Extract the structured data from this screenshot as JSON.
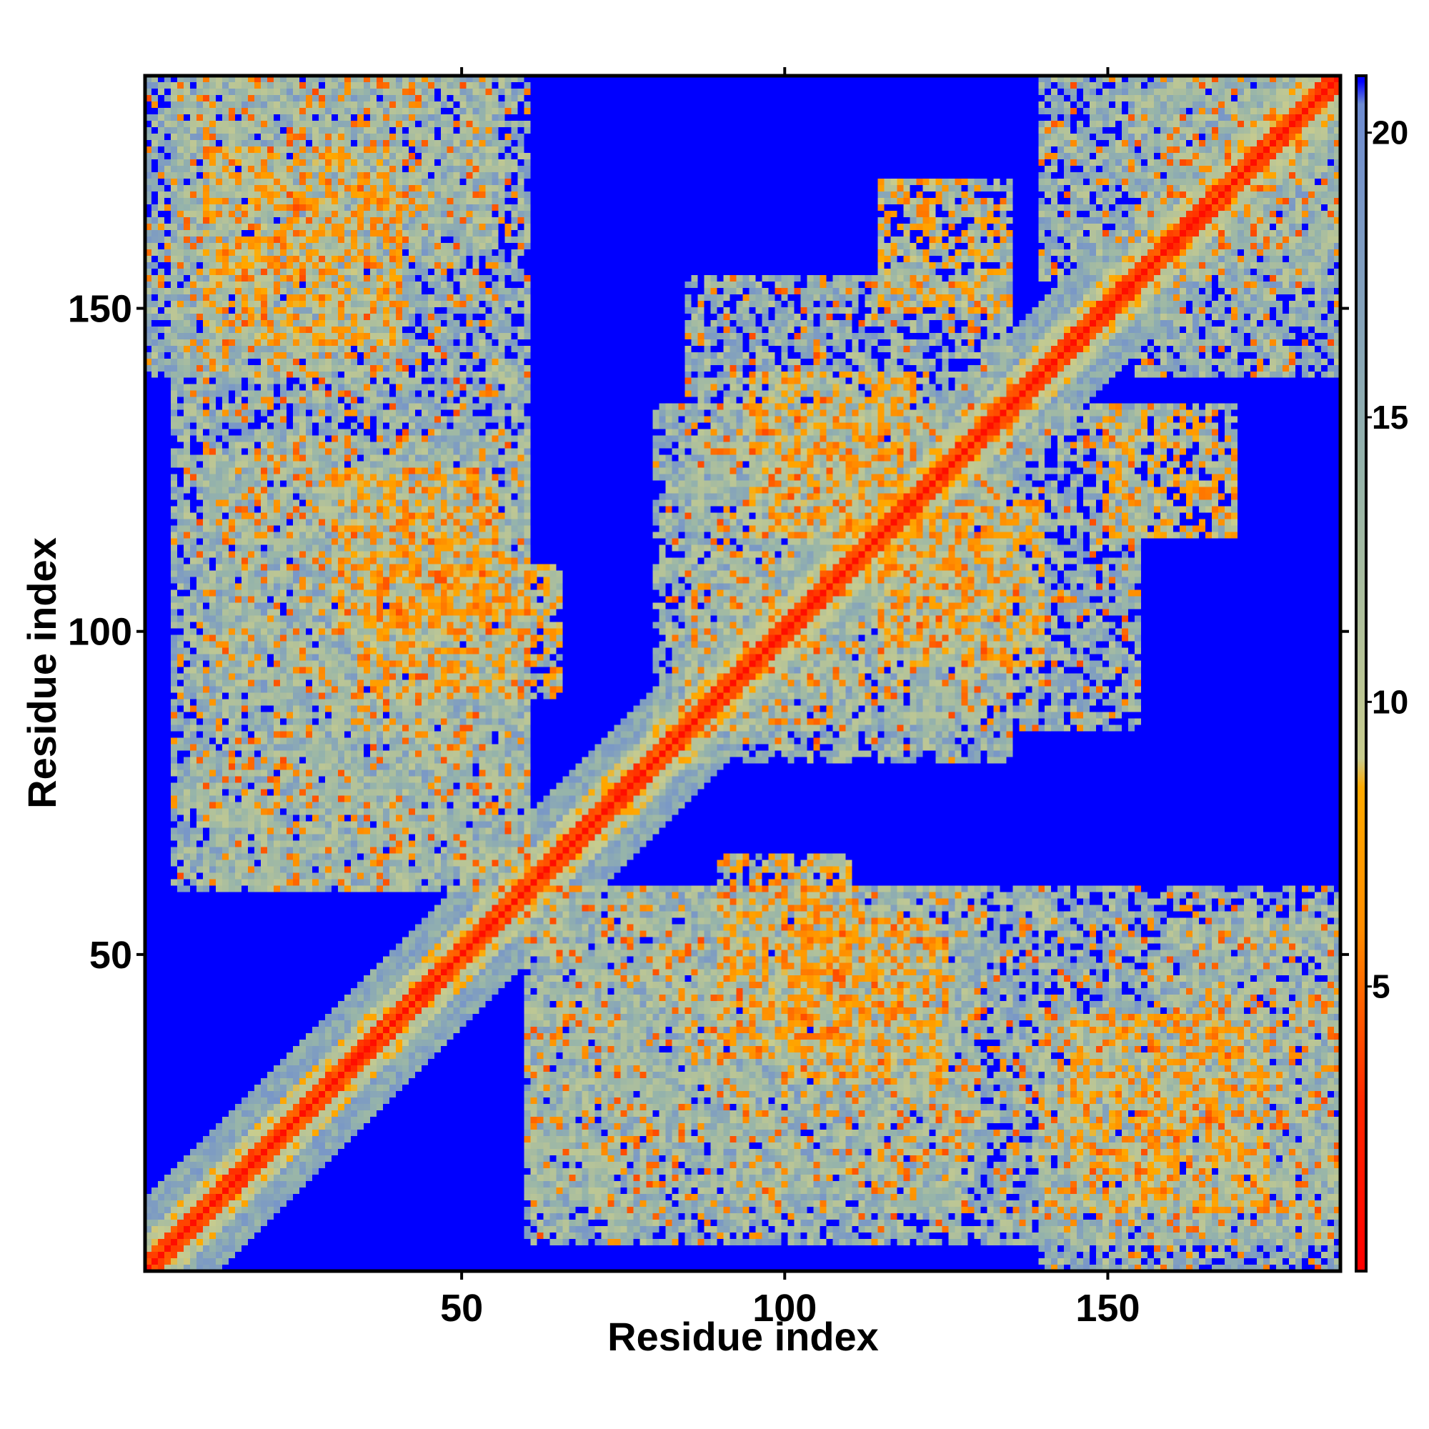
{
  "chart_data": {
    "type": "heatmap",
    "title": "",
    "description_kind": "residue contact / distance map",
    "xlabel": "Residue index",
    "ylabel": "Residue index",
    "n_residues": 186,
    "xlim": [
      1,
      186
    ],
    "ylim": [
      1,
      186
    ],
    "x_ticks": [
      50,
      100,
      150
    ],
    "y_ticks": [
      50,
      100,
      150
    ],
    "colorbar": {
      "ticks": [
        5,
        10,
        15,
        20
      ],
      "range": [
        0,
        21
      ],
      "colormap": [
        "#ff0000",
        "#ff8c00",
        "#c8cc8e",
        "#7f9ec8",
        "#0000ff"
      ],
      "position": "right"
    },
    "diagonal_band_value": 0,
    "background_value": 21,
    "contact_regions": [
      {
        "x": [
          1,
          40
        ],
        "y": [
          140,
          186
        ],
        "level": "medium"
      },
      {
        "x": [
          40,
          55
        ],
        "y": [
          160,
          186
        ],
        "level": "medium"
      },
      {
        "x": [
          5,
          60
        ],
        "y": [
          60,
          140
        ],
        "level": "medium"
      },
      {
        "x": [
          60,
          130
        ],
        "y": [
          10,
          60
        ],
        "level": "medium"
      },
      {
        "x": [
          85,
          135
        ],
        "y": [
          80,
          155
        ],
        "level": "medium"
      },
      {
        "x": [
          140,
          186
        ],
        "y": [
          5,
          60
        ],
        "level": "medium"
      },
      {
        "x": [
          140,
          186
        ],
        "y": [
          155,
          186
        ],
        "level": "medium"
      }
    ],
    "strong_contacts": [
      {
        "x": [
          35,
          65
        ],
        "y": [
          90,
          110
        ]
      },
      {
        "x": [
          100,
          125
        ],
        "y": [
          30,
          55
        ]
      },
      {
        "x": [
          115,
          140
        ],
        "y": [
          95,
          120
        ]
      },
      {
        "x": [
          150,
          170
        ],
        "y": [
          115,
          135
        ]
      },
      {
        "x": [
          10,
          40
        ],
        "y": [
          145,
          175
        ]
      }
    ]
  }
}
